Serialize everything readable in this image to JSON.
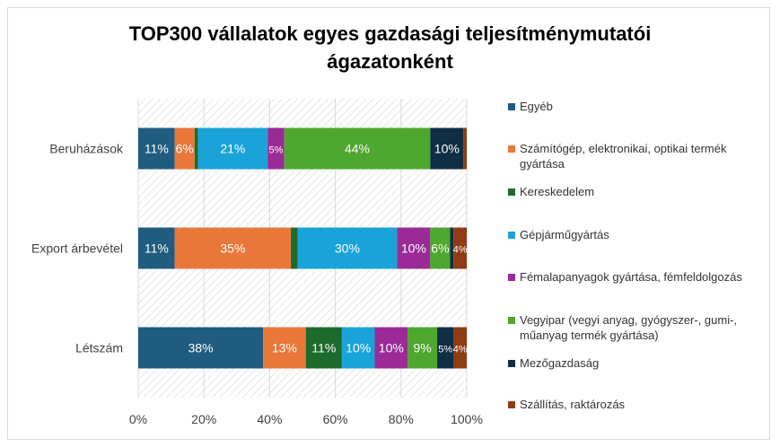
{
  "chart_data": {
    "type": "bar",
    "stacked": "100%",
    "orientation": "horizontal",
    "title_lines": [
      "TOP300 vállalatok egyes gazdasági teljesítménymutatói",
      "ágazatonként"
    ],
    "categories": [
      "Beruházások",
      "Export árbevétel",
      "Létszám"
    ],
    "xlim": [
      0,
      100
    ],
    "xticks": [
      "0%",
      "20%",
      "40%",
      "60%",
      "80%",
      "100%"
    ],
    "legend_position": "right",
    "series": [
      {
        "name": "Egyéb",
        "color": "#1f5c7f",
        "values": [
          11,
          11,
          38
        ],
        "labels": [
          "11%",
          "11%",
          "38%"
        ]
      },
      {
        "name": "Számítógép, elektronikai, optikai termék gyártása",
        "color": "#e9773a",
        "values": [
          6,
          35,
          13
        ],
        "labels": [
          "6%",
          "35%",
          "13%"
        ]
      },
      {
        "name": "Kereskedelem",
        "color": "#1d6b2c",
        "values": [
          1,
          2,
          11
        ],
        "labels": [
          "",
          "",
          "11%"
        ]
      },
      {
        "name": "Gépjárműgyártás",
        "color": "#1aa3d9",
        "values": [
          21,
          30,
          10
        ],
        "labels": [
          "21%",
          "30%",
          "10%"
        ]
      },
      {
        "name": "Fémalapanyagok gyártása, fémfeldolgozás",
        "color": "#9b2a96",
        "values": [
          5,
          10,
          10
        ],
        "labels": [
          "5%",
          "10%",
          "10%"
        ]
      },
      {
        "name": "Vegyipar (vegyi anyag, gyógyszer-, gumi-, műanyag termék gyártása)",
        "color": "#4ea72e",
        "values": [
          44,
          6,
          9
        ],
        "labels": [
          "44%",
          "6%",
          "9%"
        ]
      },
      {
        "name": "Mezőgazdaság",
        "color": "#0f2d44",
        "values": [
          10,
          1,
          5
        ],
        "labels": [
          "10%",
          "",
          "5%"
        ]
      },
      {
        "name": "Szállítás, raktározás",
        "color": "#8f3b14",
        "values": [
          1,
          4,
          4
        ],
        "labels": [
          "",
          "4%",
          "4%"
        ]
      }
    ]
  }
}
